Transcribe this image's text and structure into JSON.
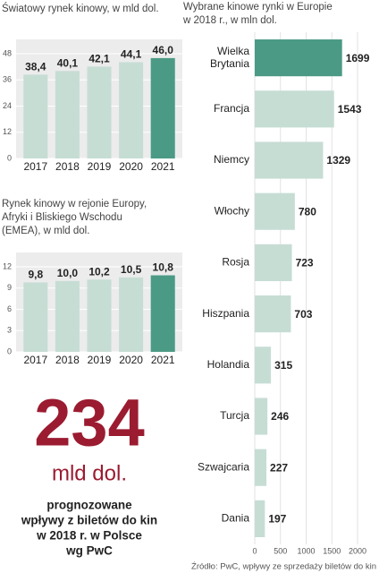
{
  "chart_data": [
    {
      "type": "bar",
      "title": [
        "Światowy rynek kinowy, w mld dol."
      ],
      "categories": [
        "2017",
        "2018",
        "2019",
        "2020",
        "2021"
      ],
      "values": [
        38.4,
        40.1,
        42.1,
        44.1,
        46.0
      ],
      "value_labels": [
        "38,4",
        "40,1",
        "42,1",
        "44,1",
        "46,0"
      ],
      "colors": [
        "#c6ddd4",
        "#c6ddd4",
        "#c6ddd4",
        "#c6ddd4",
        "#4b9a85"
      ],
      "ylim": [
        0,
        48
      ],
      "yticks": [
        0,
        12,
        24,
        36,
        48
      ],
      "grid": true
    },
    {
      "type": "bar",
      "title": [
        "Rynek kinowy w rejonie Europy,",
        "Afryki i Bliskiego Wschodu",
        "(EMEA), w mld dol."
      ],
      "categories": [
        "2017",
        "2018",
        "2019",
        "2020",
        "2021"
      ],
      "values": [
        9.8,
        10.0,
        10.2,
        10.5,
        10.8
      ],
      "value_labels": [
        "9,8",
        "10,0",
        "10,2",
        "10,5",
        "10,8"
      ],
      "colors": [
        "#c6ddd4",
        "#c6ddd4",
        "#c6ddd4",
        "#c6ddd4",
        "#4b9a85"
      ],
      "ylim": [
        0,
        12
      ],
      "yticks": [
        0,
        3,
        6,
        9,
        12
      ],
      "grid": true
    },
    {
      "type": "hbar",
      "title": [
        "Wybrane kinowe rynki w Europie",
        "w 2018 r., w mln dol."
      ],
      "categories": [
        [
          "Wielka",
          "Brytania"
        ],
        [
          "Francja"
        ],
        [
          "Niemcy"
        ],
        [
          "Włochy"
        ],
        [
          "Rosja"
        ],
        [
          "Hiszpania"
        ],
        [
          "Holandia"
        ],
        [
          "Turcja"
        ],
        [
          "Szwajcaria"
        ],
        [
          "Dania"
        ]
      ],
      "values": [
        1699,
        1543,
        1329,
        780,
        723,
        703,
        315,
        246,
        227,
        197
      ],
      "colors": [
        "#4b9a85",
        "#c6ddd4",
        "#c6ddd4",
        "#c6ddd4",
        "#c6ddd4",
        "#c6ddd4",
        "#c6ddd4",
        "#c6ddd4",
        "#c6ddd4",
        "#c6ddd4"
      ],
      "xlim": [
        0,
        2000
      ],
      "xticks": [
        0,
        500,
        1000,
        1500,
        2000
      ],
      "grid": true
    }
  ],
  "callout": {
    "number": "234",
    "unit": "mld dol.",
    "lines": [
      "prognozowane",
      "wpływy z biletów do kin",
      "w 2018 r. w Polsce",
      "wg PwC"
    ]
  },
  "source": "Źródło: PwC, wpływy ze sprzedaży biletów do kin"
}
